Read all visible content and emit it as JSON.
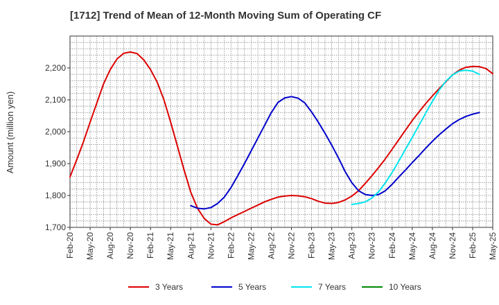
{
  "chart_data": {
    "type": "line",
    "title": "[1712]  Trend of Mean of 12-Month Moving Sum of Operating CF",
    "xlabel": "",
    "ylabel": "Amount (million yen)",
    "ylim": [
      1700,
      2300
    ],
    "yticks": [
      1700,
      1800,
      1900,
      2000,
      2100,
      2200
    ],
    "ytick_labels": [
      "1,700",
      "1,800",
      "1,900",
      "2,000",
      "2,100",
      "2,200"
    ],
    "x_start": "Feb-20",
    "x_tick_labels": [
      "Feb-20",
      "May-20",
      "Aug-20",
      "Nov-20",
      "Feb-21",
      "May-21",
      "Aug-21",
      "Nov-21",
      "Feb-22",
      "May-22",
      "Aug-22",
      "Nov-22",
      "Feb-23",
      "May-23",
      "Aug-23",
      "Nov-23",
      "Feb-24",
      "May-24",
      "Aug-24",
      "Nov-24",
      "Feb-25",
      "May-25"
    ],
    "grid": true,
    "legend_position": "bottom",
    "series": [
      {
        "name": "3 Years",
        "color": "#dd0000",
        "start_index": 0,
        "values": [
          1858,
          1912,
          1968,
          2030,
          2090,
          2150,
          2195,
          2228,
          2246,
          2250,
          2245,
          2225,
          2195,
          2155,
          2100,
          2030,
          1955,
          1880,
          1810,
          1760,
          1728,
          1710,
          1708,
          1718,
          1730,
          1740,
          1750,
          1760,
          1770,
          1780,
          1788,
          1795,
          1798,
          1800,
          1799,
          1796,
          1790,
          1782,
          1776,
          1775,
          1778,
          1786,
          1798,
          1815,
          1838,
          1862,
          1888,
          1915,
          1945,
          1975,
          2005,
          2035,
          2062,
          2088,
          2112,
          2135,
          2156,
          2178,
          2193,
          2202,
          2205,
          2204,
          2198,
          2182
        ]
      },
      {
        "name": "5 Years",
        "color": "#0000cc",
        "start_index": 18,
        "values": [
          1768,
          1760,
          1758,
          1762,
          1775,
          1795,
          1825,
          1862,
          1900,
          1940,
          1980,
          2020,
          2060,
          2092,
          2106,
          2110,
          2105,
          2090,
          2062,
          2030,
          1995,
          1958,
          1918,
          1875,
          1840,
          1815,
          1803,
          1800,
          1803,
          1815,
          1835,
          1858,
          1880,
          1903,
          1925,
          1948,
          1970,
          1990,
          2008,
          2025,
          2038,
          2048,
          2055,
          2060
        ]
      },
      {
        "name": "7 Years",
        "color": "#00e5ee",
        "start_index": 42,
        "values": [
          1772,
          1775,
          1780,
          1792,
          1812,
          1840,
          1872,
          1908,
          1945,
          1982,
          2020,
          2058,
          2095,
          2130,
          2158,
          2178,
          2190,
          2193,
          2190,
          2180
        ]
      },
      {
        "name": "10 Years",
        "color": "#008800",
        "start_index": 0,
        "values": []
      }
    ]
  }
}
